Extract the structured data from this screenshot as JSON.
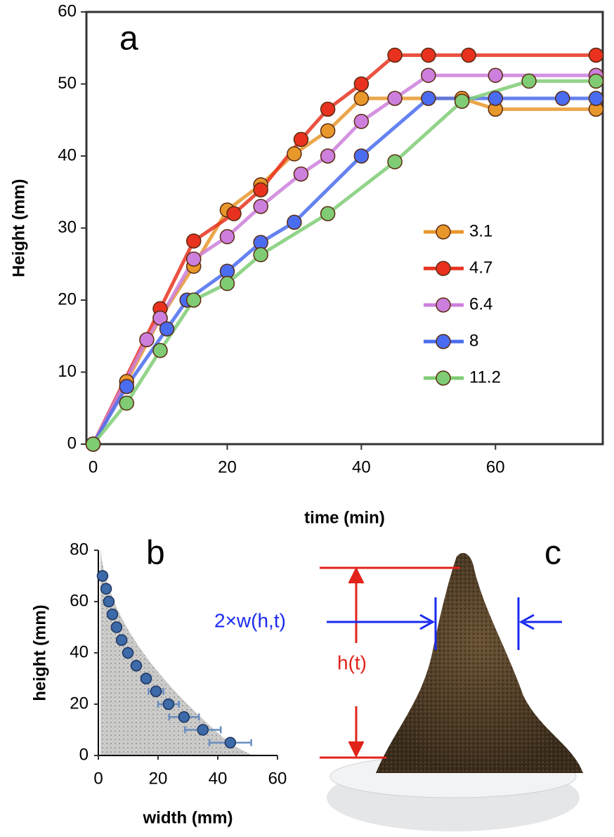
{
  "chart_data": [
    {
      "type": "line",
      "label": "a",
      "xlabel": "time (min)",
      "ylabel": "Height (mm)",
      "xlim": [
        -1,
        76
      ],
      "xticks": [
        0,
        20,
        40,
        60
      ],
      "ylim": [
        0,
        60
      ],
      "yticks": [
        0,
        10,
        20,
        30,
        40,
        50,
        60
      ],
      "legend": "center right",
      "series": [
        {
          "name": "3.1",
          "color": "#e8972b",
          "x": [
            0,
            5,
            10,
            15,
            20,
            25,
            30,
            35,
            40,
            55,
            60,
            75
          ],
          "values": [
            0,
            8.7,
            17.5,
            24.7,
            32.5,
            36,
            40.3,
            43.5,
            48,
            48,
            46.5,
            46.5
          ]
        },
        {
          "name": "4.7",
          "color": "#e8321f",
          "x": [
            0,
            10,
            15,
            21,
            25,
            31,
            35,
            40,
            45,
            50,
            56,
            75
          ],
          "values": [
            0,
            18.8,
            28.2,
            32,
            35.3,
            42.3,
            46.5,
            50,
            54,
            54,
            54,
            54
          ]
        },
        {
          "name": "6.4",
          "color": "#cc7fdc",
          "x": [
            0,
            8,
            10,
            15,
            20,
            25,
            31,
            35,
            40,
            45,
            50,
            60,
            75
          ],
          "values": [
            0,
            14.5,
            17.5,
            25.7,
            28.8,
            33,
            37.5,
            40,
            44.8,
            48,
            51.2,
            51.2,
            51.2
          ]
        },
        {
          "name": "8",
          "color": "#4a6cf0",
          "x": [
            0,
            5,
            11,
            14,
            20,
            25,
            30,
            40,
            50,
            60,
            70,
            75
          ],
          "values": [
            0,
            8,
            16,
            20,
            24,
            28,
            30.8,
            40,
            48,
            48,
            48,
            48
          ]
        },
        {
          "name": "11.2",
          "color": "#7fcc75",
          "x": [
            0,
            5,
            10,
            15,
            20,
            25,
            35,
            45,
            55,
            65,
            75
          ],
          "values": [
            0,
            5.7,
            13,
            20,
            22.3,
            26.3,
            32,
            39.2,
            47.6,
            50.4,
            50.4
          ]
        }
      ]
    },
    {
      "type": "scatter",
      "label": "b",
      "xlabel": "width (mm)",
      "ylabel": "height (mm)",
      "xlim": [
        0,
        60
      ],
      "xticks": [
        0,
        20,
        40,
        60
      ],
      "ylim": [
        0,
        80
      ],
      "yticks": [
        0,
        20,
        40,
        60,
        80
      ],
      "color": "#3d6aa8",
      "x": [
        1.4,
        2.6,
        3.5,
        4.7,
        6.1,
        7.8,
        9.9,
        12.7,
        16,
        19.3,
        23.5,
        28.7,
        35,
        44.2
      ],
      "y": [
        70,
        65,
        60,
        55,
        50,
        45,
        40,
        35,
        30,
        25,
        20,
        15,
        10,
        5
      ],
      "error": [
        0.5,
        0.5,
        0.5,
        0.5,
        0.5,
        0.5,
        0.8,
        1,
        1.5,
        2.5,
        3.5,
        5,
        6,
        7
      ]
    }
  ],
  "photo": {
    "label": "c",
    "width_label": "2×w(h,t)",
    "height_label": "h(t)"
  }
}
